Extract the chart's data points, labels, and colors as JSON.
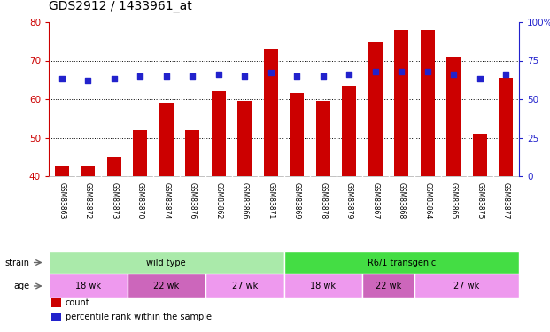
{
  "title": "GDS2912 / 1433961_at",
  "samples": [
    "GSM83863",
    "GSM83872",
    "GSM83873",
    "GSM83870",
    "GSM83874",
    "GSM83876",
    "GSM83862",
    "GSM83866",
    "GSM83871",
    "GSM83869",
    "GSM83878",
    "GSM83879",
    "GSM83867",
    "GSM83868",
    "GSM83864",
    "GSM83865",
    "GSM83875",
    "GSM83877"
  ],
  "count_values": [
    42.5,
    42.5,
    45.0,
    52.0,
    59.0,
    52.0,
    62.0,
    59.5,
    73.0,
    61.5,
    59.5,
    63.5,
    75.0,
    78.0,
    78.0,
    71.0,
    51.0,
    65.5
  ],
  "percentile_values": [
    63,
    62,
    63,
    65,
    65,
    65,
    66,
    65,
    67,
    65,
    65,
    66,
    68,
    68,
    68,
    66,
    63,
    66
  ],
  "ylim_left": [
    40,
    80
  ],
  "ylim_right": [
    0,
    100
  ],
  "yticks_left": [
    40,
    50,
    60,
    70,
    80
  ],
  "yticks_right": [
    0,
    25,
    50,
    75,
    100
  ],
  "bar_color": "#cc0000",
  "dot_color": "#2222cc",
  "strain_groups": [
    {
      "label": "wild type",
      "start": 0,
      "end": 9,
      "color": "#aaeaaa"
    },
    {
      "label": "R6/1 transgenic",
      "start": 9,
      "end": 18,
      "color": "#44dd44"
    }
  ],
  "age_groups": [
    {
      "label": "18 wk",
      "start": 0,
      "end": 3,
      "color": "#ee88ee"
    },
    {
      "label": "22 wk",
      "start": 3,
      "end": 6,
      "color": "#dd66cc"
    },
    {
      "label": "27 wk",
      "start": 6,
      "end": 9,
      "color": "#ee88ee"
    },
    {
      "label": "18 wk",
      "start": 9,
      "end": 12,
      "color": "#ee88ee"
    },
    {
      "label": "22 wk",
      "start": 12,
      "end": 14,
      "color": "#dd66cc"
    },
    {
      "label": "27 wk",
      "start": 14,
      "end": 18,
      "color": "#ee88ee"
    }
  ],
  "legend_items": [
    {
      "label": "count",
      "color": "#cc0000"
    },
    {
      "label": "percentile rank within the sample",
      "color": "#2222cc"
    }
  ],
  "left_axis_color": "#cc0000",
  "right_axis_color": "#2222cc",
  "title_fontsize": 10,
  "plot_bg_color": "#ffffff",
  "grid_color": "#000000"
}
